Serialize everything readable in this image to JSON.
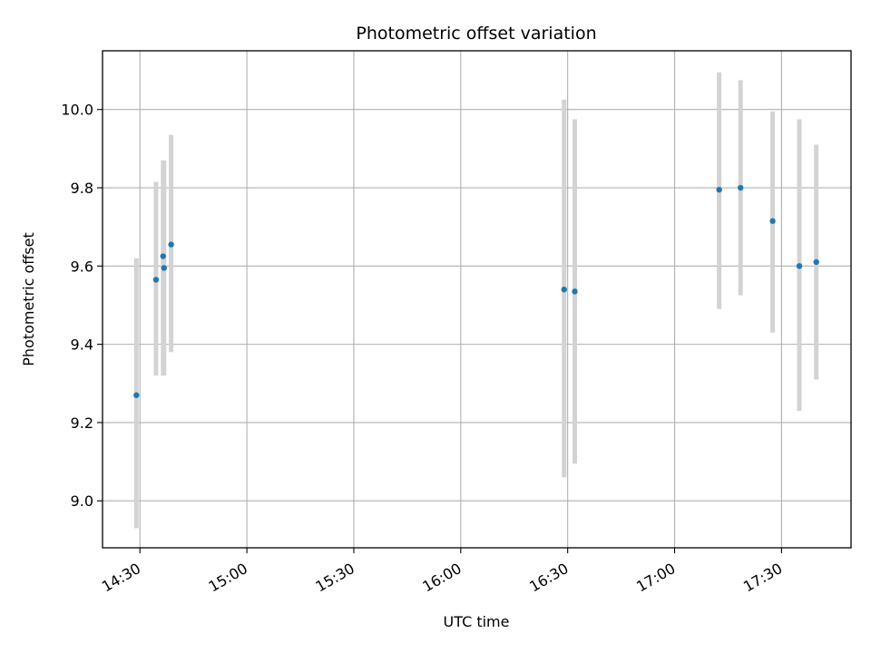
{
  "chart_data": {
    "type": "scatter",
    "title": "Photometric offset variation",
    "xlabel": "UTC time",
    "ylabel": "Photometric offset",
    "x_tick_labels": [
      "14:30",
      "15:00",
      "15:30",
      "16:00",
      "16:30",
      "17:00",
      "17:30"
    ],
    "y_tick_labels": [
      "9.0",
      "9.2",
      "9.4",
      "9.6",
      "9.8",
      "10.0"
    ],
    "x_ticks": [
      "14:30",
      "15:00",
      "15:30",
      "16:00",
      "16:30",
      "17:00",
      "17:30"
    ],
    "y_ticks": [
      9.0,
      9.2,
      9.4,
      9.6,
      9.8,
      10.0
    ],
    "xlim": [
      "14:19:30",
      "17:49:30"
    ],
    "ylim": [
      8.88,
      10.15
    ],
    "grid": true,
    "series": [
      {
        "points": [
          {
            "x": "14:29:00",
            "y": 9.27,
            "yerr_low": 8.93,
            "yerr_high": 9.62
          },
          {
            "x": "14:34:30",
            "y": 9.565,
            "yerr_low": 9.32,
            "yerr_high": 9.815
          },
          {
            "x": "14:36:30",
            "y": 9.625,
            "yerr_low": 9.32,
            "yerr_high": 9.87
          },
          {
            "x": "14:36:45",
            "y": 9.595,
            "yerr_low": 9.32,
            "yerr_high": 9.87
          },
          {
            "x": "14:38:45",
            "y": 9.655,
            "yerr_low": 9.38,
            "yerr_high": 9.935
          },
          {
            "x": "16:29:00",
            "y": 9.54,
            "yerr_low": 9.06,
            "yerr_high": 10.025
          },
          {
            "x": "16:32:00",
            "y": 9.535,
            "yerr_low": 9.095,
            "yerr_high": 9.975
          },
          {
            "x": "17:12:30",
            "y": 9.795,
            "yerr_low": 9.49,
            "yerr_high": 10.095
          },
          {
            "x": "17:18:30",
            "y": 9.8,
            "yerr_low": 9.525,
            "yerr_high": 10.075
          },
          {
            "x": "17:27:30",
            "y": 9.715,
            "yerr_low": 9.43,
            "yerr_high": 9.995
          },
          {
            "x": "17:35:00",
            "y": 9.6,
            "yerr_low": 9.23,
            "yerr_high": 9.975
          },
          {
            "x": "17:39:45",
            "y": 9.61,
            "yerr_low": 9.31,
            "yerr_high": 9.91
          }
        ]
      }
    ],
    "colors": {
      "marker": "#1f77b4",
      "errorbar": "#d3d3d3",
      "grid": "#b0b0b0",
      "axes": "#000000"
    }
  }
}
